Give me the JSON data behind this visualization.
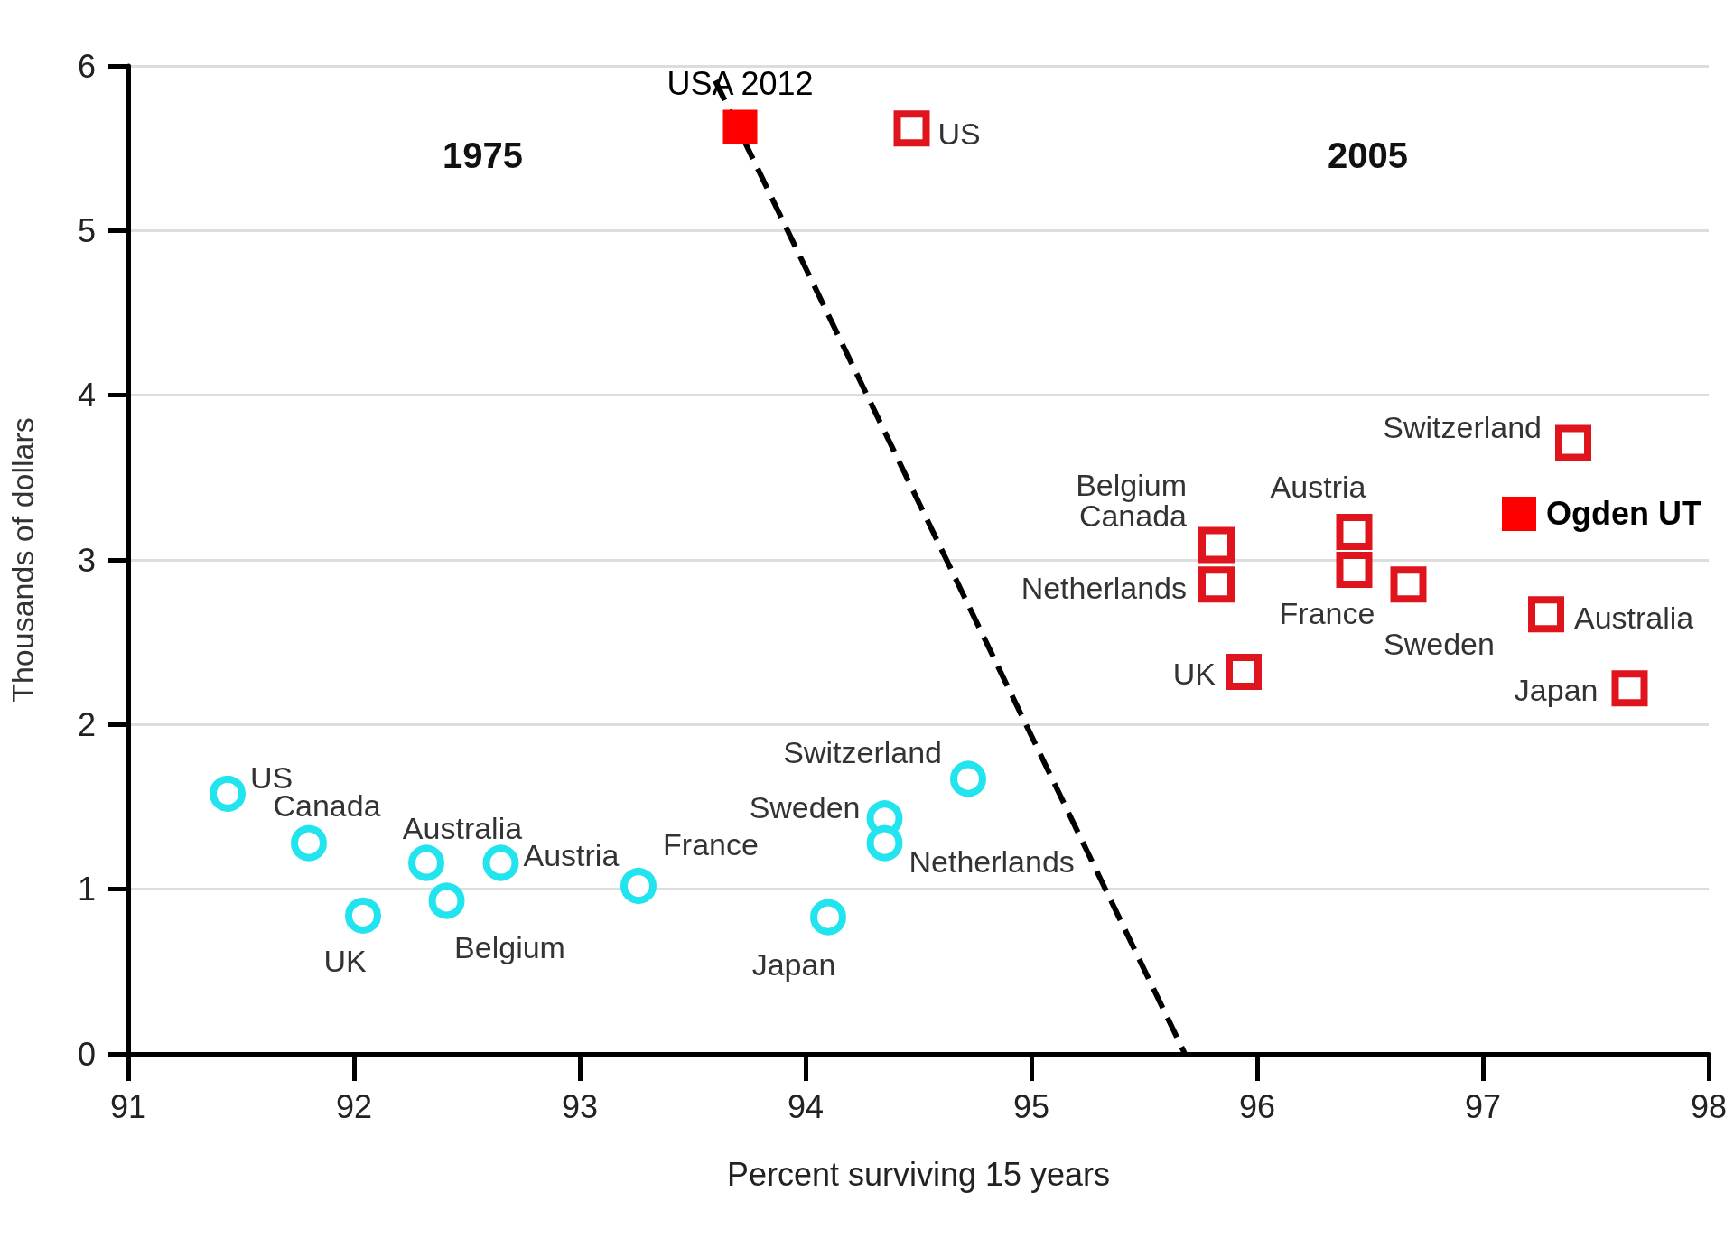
{
  "chart_data": {
    "type": "scatter",
    "xlabel": "Percent surviving 15 years",
    "ylabel": "Thousands of dollars",
    "xlim": [
      91,
      98
    ],
    "xticks": [
      91,
      92,
      93,
      94,
      95,
      96,
      97,
      98
    ],
    "ylim": [
      0,
      6
    ],
    "yticks": [
      0,
      1,
      2,
      3,
      4,
      5,
      6
    ],
    "grid": "y",
    "legend": false,
    "annotations": [
      "1975",
      "2005"
    ],
    "series": [
      {
        "color": "#22e4ee",
        "marker": "circle",
        "x": [
          91.44,
          91.8,
          92.04,
          92.32,
          92.41,
          92.65,
          93.26,
          94.1,
          94.35,
          94.35,
          94.72
        ],
        "values": [
          1.58,
          1.28,
          0.84,
          1.16,
          0.93,
          1.16,
          1.02,
          0.83,
          1.43,
          1.28,
          1.67
        ],
        "value_labels": [
          "US",
          "Canada",
          "UK",
          "Australia",
          "Belgium",
          "Austria",
          "France",
          "Japan",
          "Sweden",
          "Netherlands",
          "Switzerland"
        ]
      },
      {
        "color": "#e0141c",
        "marker": "square",
        "x": [
          94.47,
          95.82,
          95.82,
          96.43,
          96.43,
          96.67,
          95.94,
          97.4,
          97.28,
          97.65
        ],
        "values": [
          5.62,
          3.09,
          2.85,
          3.17,
          2.94,
          2.85,
          2.32,
          3.71,
          2.67,
          2.22
        ],
        "value_labels": [
          "US",
          "Belgium\nCanada",
          "Netherlands",
          "Austria",
          "France",
          "Sweden",
          "UK",
          "Switzerland",
          "Australia",
          "Japan"
        ]
      },
      {
        "name": "USA 2012",
        "color": "#ff0000",
        "marker": "square",
        "x": [
          93.71
        ],
        "values": [
          5.63
        ]
      },
      {
        "name": "Ogden UT",
        "color": "#ff0000",
        "marker": "square",
        "x": [
          97.16
        ],
        "values": [
          3.28
        ]
      },
      {
        "type": "line",
        "color": "#000000",
        "marker": "none",
        "line_style": "dashed",
        "x": [
          93.6,
          95.68
        ],
        "values": [
          5.91,
          0
        ]
      }
    ]
  }
}
